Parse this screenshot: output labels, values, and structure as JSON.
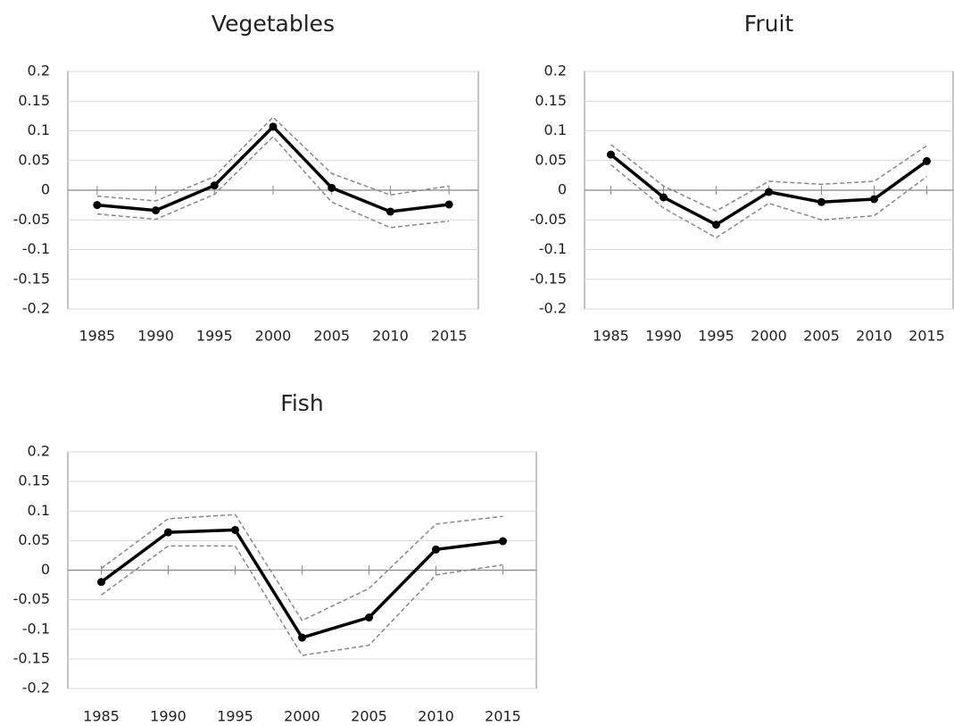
{
  "chart_data": [
    {
      "type": "line",
      "title": "Vegetables",
      "categories": [
        "1985",
        "1990",
        "1995",
        "2000",
        "2005",
        "2010",
        "2015"
      ],
      "series": [
        {
          "color": "#000000",
          "markers": true,
          "dashed": false,
          "values": [
            -0.025,
            -0.034,
            0.008,
            0.107,
            0.004,
            -0.036,
            -0.024
          ]
        },
        {
          "color": "#888888",
          "markers": false,
          "dashed": true,
          "values": [
            -0.01,
            -0.018,
            0.023,
            0.123,
            0.028,
            -0.008,
            0.007
          ]
        },
        {
          "color": "#888888",
          "markers": false,
          "dashed": true,
          "values": [
            -0.04,
            -0.049,
            -0.007,
            0.09,
            -0.02,
            -0.063,
            -0.052
          ]
        }
      ],
      "ylim": [
        -0.2,
        0.2
      ],
      "yticks": [
        -0.2,
        -0.15,
        -0.1,
        -0.05,
        0,
        0.05,
        0.1,
        0.15,
        0.2
      ],
      "grid": true
    },
    {
      "type": "line",
      "title": "Fruit",
      "categories": [
        "1985",
        "1990",
        "1995",
        "2000",
        "2005",
        "2010",
        "2015"
      ],
      "series": [
        {
          "color": "#000000",
          "markers": true,
          "dashed": false,
          "values": [
            0.06,
            -0.012,
            -0.058,
            -0.003,
            -0.02,
            -0.015,
            0.049
          ]
        },
        {
          "color": "#888888",
          "markers": false,
          "dashed": true,
          "values": [
            0.077,
            0.007,
            -0.035,
            0.015,
            0.01,
            0.015,
            0.075
          ]
        },
        {
          "color": "#888888",
          "markers": false,
          "dashed": true,
          "values": [
            0.043,
            -0.03,
            -0.08,
            -0.022,
            -0.05,
            -0.043,
            0.023
          ]
        }
      ],
      "ylim": [
        -0.2,
        0.2
      ],
      "yticks": [
        -0.2,
        -0.15,
        -0.1,
        -0.05,
        0,
        0.05,
        0.1,
        0.15,
        0.2
      ],
      "grid": true
    },
    {
      "type": "line",
      "title": "Fish",
      "categories": [
        "1985",
        "1990",
        "1995",
        "2000",
        "2005",
        "2010",
        "2015"
      ],
      "series": [
        {
          "color": "#000000",
          "markers": true,
          "dashed": false,
          "values": [
            -0.02,
            0.064,
            0.068,
            -0.114,
            -0.08,
            0.035,
            0.049
          ]
        },
        {
          "color": "#888888",
          "markers": false,
          "dashed": true,
          "values": [
            0.003,
            0.087,
            0.094,
            -0.085,
            -0.031,
            0.078,
            0.091
          ]
        },
        {
          "color": "#888888",
          "markers": false,
          "dashed": true,
          "values": [
            -0.042,
            0.041,
            0.041,
            -0.144,
            -0.127,
            -0.008,
            0.009
          ]
        }
      ],
      "ylim": [
        -0.2,
        0.2
      ],
      "yticks": [
        -0.2,
        -0.15,
        -0.1,
        -0.05,
        0,
        0.05,
        0.1,
        0.15,
        0.2
      ],
      "grid": true
    }
  ]
}
